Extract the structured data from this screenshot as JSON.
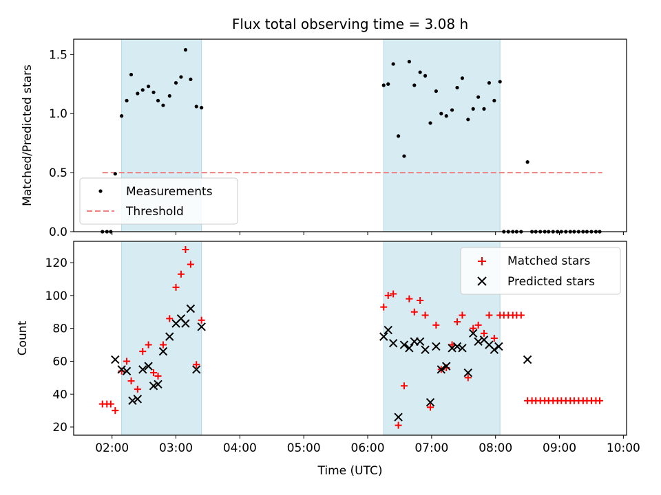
{
  "chart_data": [
    {
      "type": "scatter",
      "title": "Flux total observing time = 3.08 h",
      "xlabel": "",
      "ylabel": "Matched/Predicted stars",
      "xlim_hours": [
        1.4,
        10.05
      ],
      "ylim": [
        0,
        1.63
      ],
      "yticks": [
        0.0,
        0.5,
        1.0,
        1.5
      ],
      "ytick_labels": [
        "0.0",
        "0.5",
        "1.0",
        "1.5"
      ],
      "shaded_spans_hours": [
        [
          2.15,
          3.4
        ],
        [
          6.25,
          8.07
        ]
      ],
      "legend": {
        "location": "lower-left",
        "entries": [
          "Measurements",
          "Threshold"
        ]
      },
      "colors": {
        "measurements": "#000000",
        "threshold": "#f08080",
        "span": "#add8e6"
      },
      "series": [
        {
          "name": "Measurements",
          "x": [
            1.85,
            1.92,
            1.98,
            2.05,
            2.15,
            2.23,
            2.3,
            2.4,
            2.48,
            2.57,
            2.65,
            2.72,
            2.8,
            2.9,
            3.0,
            3.08,
            3.15,
            3.23,
            3.32,
            3.4,
            6.25,
            6.32,
            6.4,
            6.48,
            6.57,
            6.65,
            6.73,
            6.82,
            6.9,
            6.98,
            7.07,
            7.15,
            7.23,
            7.32,
            7.4,
            7.48,
            7.57,
            7.65,
            7.73,
            7.82,
            7.9,
            7.98,
            8.07,
            8.13,
            8.2,
            8.27,
            8.33,
            8.4,
            8.5,
            8.57,
            8.63,
            8.7,
            8.77,
            8.83,
            8.9,
            8.97,
            9.03,
            9.1,
            9.17,
            9.23,
            9.3,
            9.37,
            9.43,
            9.5,
            9.57,
            9.63
          ],
          "y": [
            0,
            0,
            0,
            0.49,
            0.98,
            1.11,
            1.33,
            1.17,
            1.2,
            1.23,
            1.18,
            1.11,
            1.07,
            1.15,
            1.26,
            1.31,
            1.54,
            1.29,
            1.06,
            1.05,
            1.24,
            1.25,
            1.42,
            0.81,
            0.64,
            1.44,
            1.24,
            1.35,
            1.32,
            0.92,
            1.19,
            1.0,
            0.98,
            1.03,
            1.22,
            1.3,
            0.95,
            1.04,
            1.14,
            1.04,
            1.26,
            1.11,
            1.27,
            0,
            0,
            0,
            0,
            0,
            0.59,
            0,
            0,
            0,
            0,
            0,
            0,
            0,
            0,
            0,
            0,
            0,
            0,
            0,
            0,
            0,
            0,
            0
          ]
        },
        {
          "name": "Threshold",
          "x": [
            1.85,
            9.67
          ],
          "y": [
            0.5,
            0.5
          ]
        }
      ]
    },
    {
      "type": "scatter",
      "title": "",
      "xlabel": "Time (UTC)",
      "ylabel": "Count",
      "xlim_hours": [
        1.4,
        10.05
      ],
      "ylim": [
        15,
        133
      ],
      "yticks": [
        20,
        40,
        60,
        80,
        100,
        120
      ],
      "ytick_labels": [
        "20",
        "40",
        "60",
        "80",
        "100",
        "120"
      ],
      "xticks_hours": [
        2,
        3,
        4,
        5,
        6,
        7,
        8,
        9,
        10
      ],
      "xtick_labels": [
        "02:00",
        "03:00",
        "04:00",
        "05:00",
        "06:00",
        "07:00",
        "08:00",
        "09:00",
        "10:00"
      ],
      "shaded_spans_hours": [
        [
          2.15,
          3.4
        ],
        [
          6.25,
          8.07
        ]
      ],
      "legend": {
        "location": "top-right",
        "entries": [
          "Matched stars",
          "Predicted stars"
        ]
      },
      "colors": {
        "matched": "#ff0000",
        "predicted": "#000000",
        "span": "#add8e6"
      },
      "series": [
        {
          "name": "Matched stars",
          "x": [
            1.85,
            1.92,
            1.98,
            2.05,
            2.15,
            2.23,
            2.3,
            2.4,
            2.48,
            2.57,
            2.65,
            2.72,
            2.8,
            2.9,
            3.0,
            3.08,
            3.15,
            3.23,
            3.32,
            3.4,
            6.25,
            6.32,
            6.4,
            6.48,
            6.57,
            6.65,
            6.73,
            6.82,
            6.9,
            6.98,
            7.07,
            7.15,
            7.23,
            7.32,
            7.4,
            7.48,
            7.57,
            7.65,
            7.73,
            7.82,
            7.9,
            7.98,
            8.07,
            8.13,
            8.2,
            8.27,
            8.33,
            8.4,
            8.5,
            8.57,
            8.63,
            8.7,
            8.77,
            8.83,
            8.9,
            8.97,
            9.03,
            9.1,
            9.17,
            9.23,
            9.3,
            9.37,
            9.43,
            9.5,
            9.57,
            9.63
          ],
          "y": [
            34,
            34,
            34,
            30,
            54,
            60,
            48,
            43,
            66,
            70,
            53,
            51,
            70,
            86,
            105,
            113,
            128,
            119,
            58,
            85,
            93,
            100,
            101,
            21,
            45,
            98,
            90,
            97,
            88,
            32,
            82,
            55,
            56,
            70,
            84,
            88,
            50,
            80,
            82,
            77,
            88,
            74,
            88,
            88,
            88,
            88,
            88,
            88,
            36,
            36,
            36,
            36,
            36,
            36,
            36,
            36,
            36,
            36,
            36,
            36,
            36,
            36,
            36,
            36,
            36,
            36
          ]
        },
        {
          "name": "Predicted stars",
          "x": [
            2.05,
            2.15,
            2.23,
            2.32,
            2.4,
            2.48,
            2.57,
            2.65,
            2.72,
            2.8,
            2.9,
            3.0,
            3.08,
            3.15,
            3.23,
            3.32,
            3.4,
            6.25,
            6.32,
            6.4,
            6.48,
            6.57,
            6.65,
            6.73,
            6.82,
            6.9,
            6.98,
            7.07,
            7.15,
            7.23,
            7.32,
            7.4,
            7.48,
            7.57,
            7.65,
            7.73,
            7.82,
            7.9,
            7.98,
            8.05,
            8.5
          ],
          "y": [
            61,
            55,
            54,
            36,
            37,
            55,
            57,
            45,
            46,
            66,
            75,
            83,
            86,
            83,
            92,
            55,
            81,
            75,
            79,
            71,
            26,
            70,
            68,
            72,
            72,
            67,
            35,
            69,
            55,
            57,
            68,
            69,
            68,
            53,
            77,
            72,
            73,
            70,
            67,
            69,
            61
          ]
        }
      ]
    }
  ]
}
